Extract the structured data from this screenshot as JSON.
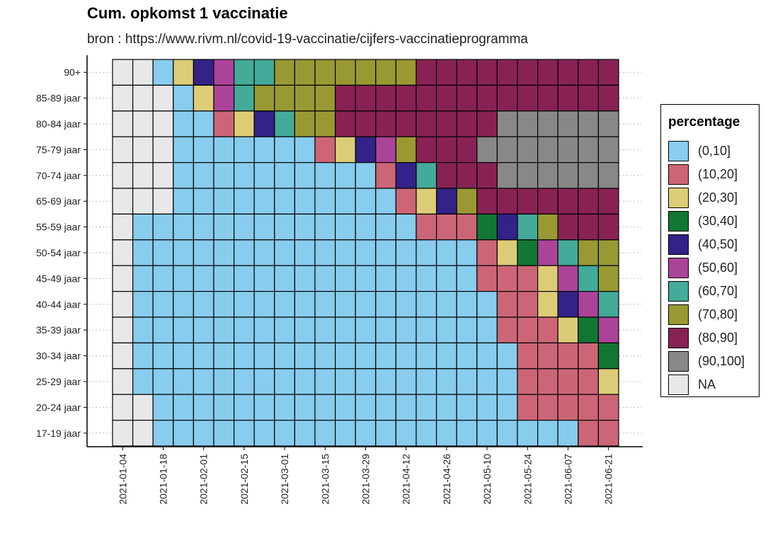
{
  "chart_data": {
    "type": "heatmap",
    "title": "Cum. opkomst 1 vaccinatie",
    "subtitle": "bron : https://www.rivm.nl/covid-19-vaccinatie/cijfers-vaccinatieprogramma",
    "x_tick_labels": [
      "2021-01-04",
      "2021-01-18",
      "2021-02-01",
      "2021-02-15",
      "2021-03-01",
      "2021-03-15",
      "2021-03-29",
      "2021-04-12",
      "2021-04-26",
      "2021-05-10",
      "2021-05-24",
      "2021-06-07",
      "2021-06-21"
    ],
    "x_weeks": [
      "2021-01-04",
      "2021-01-11",
      "2021-01-18",
      "2021-01-25",
      "2021-02-01",
      "2021-02-08",
      "2021-02-15",
      "2021-02-22",
      "2021-03-01",
      "2021-03-08",
      "2021-03-15",
      "2021-03-22",
      "2021-03-29",
      "2021-04-05",
      "2021-04-12",
      "2021-04-19",
      "2021-04-26",
      "2021-05-03",
      "2021-05-10",
      "2021-05-17",
      "2021-05-24",
      "2021-05-31",
      "2021-06-07",
      "2021-06-14",
      "2021-06-21"
    ],
    "y_categories": [
      "90+",
      "85-89 jaar",
      "80-84 jaar",
      "75-79 jaar",
      "70-74 jaar",
      "65-69 jaar",
      "55-59 jaar",
      "50-54 jaar",
      "45-49 jaar",
      "40-44 jaar",
      "35-39 jaar",
      "30-34 jaar",
      "25-29 jaar",
      "20-24 jaar",
      "17-19 jaar"
    ],
    "legend_title": "percentage",
    "legend_placement": "right",
    "grid": true,
    "bins": [
      {
        "label": "(0,10]",
        "color": "#88ccee"
      },
      {
        "label": "(10,20]",
        "color": "#cc6677"
      },
      {
        "label": "(20,30]",
        "color": "#ddcc77"
      },
      {
        "label": "(30,40]",
        "color": "#117733"
      },
      {
        "label": "(40,50]",
        "color": "#332288"
      },
      {
        "label": "(50,60]",
        "color": "#aa4499"
      },
      {
        "label": "(60,70]",
        "color": "#44aa99"
      },
      {
        "label": "(70,80]",
        "color": "#999933"
      },
      {
        "label": "(80,90]",
        "color": "#882255"
      },
      {
        "label": "(90,100]",
        "color": "#888888"
      },
      {
        "label": "NA",
        "color": "#e8e8e8"
      }
    ],
    "cells": [
      "NA,NA,(0,10],(20,30],(40,50],(50,60],(60,70],(60,70],(70,80],(70,80],(70,80],(70,80],(70,80],(70,80],(70,80],(80,90],(80,90],(80,90],(80,90],(80,90],(80,90],(80,90],(80,90],(80,90],(80,90]",
      "NA,NA,NA,(0,10],(20,30],(50,60],(60,70],(70,80],(70,80],(70,80],(70,80],(80,90],(80,90],(80,90],(80,90],(80,90],(80,90],(80,90],(80,90],(80,90],(80,90],(80,90],(80,90],(80,90],(80,90]",
      "NA,NA,NA,(0,10],(0,10],(10,20],(20,30],(40,50],(60,70],(70,80],(70,80],(80,90],(80,90],(80,90],(80,90],(80,90],(80,90],(80,90],(80,90],(90,100],(90,100],(90,100],(90,100],(90,100],(90,100]",
      "NA,NA,NA,(0,10],(0,10],(0,10],(0,10],(0,10],(0,10],(0,10],(10,20],(20,30],(40,50],(50,60],(70,80],(80,90],(80,90],(80,90],(90,100],(90,100],(90,100],(90,100],(90,100],(90,100],(90,100]",
      "NA,NA,NA,(0,10],(0,10],(0,10],(0,10],(0,10],(0,10],(0,10],(0,10],(0,10],(0,10],(10,20],(40,50],(60,70],(80,90],(80,90],(80,90],(90,100],(90,100],(90,100],(90,100],(90,100],(90,100]",
      "NA,NA,NA,(0,10],(0,10],(0,10],(0,10],(0,10],(0,10],(0,10],(0,10],(0,10],(0,10],(0,10],(10,20],(20,30],(40,50],(70,80],(80,90],(80,90],(80,90],(80,90],(80,90],(80,90],(80,90]",
      "NA,(0,10],(0,10],(0,10],(0,10],(0,10],(0,10],(0,10],(0,10],(0,10],(0,10],(0,10],(0,10],(0,10],(0,10],(10,20],(10,20],(10,20],(30,40],(40,50],(60,70],(70,80],(80,90],(80,90],(80,90]",
      "NA,(0,10],(0,10],(0,10],(0,10],(0,10],(0,10],(0,10],(0,10],(0,10],(0,10],(0,10],(0,10],(0,10],(0,10],(0,10],(0,10],(0,10],(10,20],(20,30],(30,40],(50,60],(60,70],(70,80],(70,80]",
      "NA,(0,10],(0,10],(0,10],(0,10],(0,10],(0,10],(0,10],(0,10],(0,10],(0,10],(0,10],(0,10],(0,10],(0,10],(0,10],(0,10],(0,10],(10,20],(10,20],(10,20],(20,30],(50,60],(60,70],(70,80]",
      "NA,(0,10],(0,10],(0,10],(0,10],(0,10],(0,10],(0,10],(0,10],(0,10],(0,10],(0,10],(0,10],(0,10],(0,10],(0,10],(0,10],(0,10],(0,10],(10,20],(10,20],(20,30],(40,50],(50,60],(60,70]",
      "NA,(0,10],(0,10],(0,10],(0,10],(0,10],(0,10],(0,10],(0,10],(0,10],(0,10],(0,10],(0,10],(0,10],(0,10],(0,10],(0,10],(0,10],(0,10],(10,20],(10,20],(10,20],(20,30],(30,40],(50,60]",
      "NA,(0,10],(0,10],(0,10],(0,10],(0,10],(0,10],(0,10],(0,10],(0,10],(0,10],(0,10],(0,10],(0,10],(0,10],(0,10],(0,10],(0,10],(0,10],(0,10],(10,20],(10,20],(10,20],(10,20],(30,40]",
      "NA,(0,10],(0,10],(0,10],(0,10],(0,10],(0,10],(0,10],(0,10],(0,10],(0,10],(0,10],(0,10],(0,10],(0,10],(0,10],(0,10],(0,10],(0,10],(0,10],(10,20],(10,20],(10,20],(10,20],(20,30]",
      "NA,NA,(0,10],(0,10],(0,10],(0,10],(0,10],(0,10],(0,10],(0,10],(0,10],(0,10],(0,10],(0,10],(0,10],(0,10],(0,10],(0,10],(0,10],(0,10],(10,20],(10,20],(10,20],(10,20],(10,20]",
      "NA,NA,(0,10],(0,10],(0,10],(0,10],(0,10],(0,10],(0,10],(0,10],(0,10],(0,10],(0,10],(0,10],(0,10],(0,10],(0,10],(0,10],(0,10],(0,10],(0,10],(0,10],(0,10],(10,20],(10,20]"
    ]
  }
}
